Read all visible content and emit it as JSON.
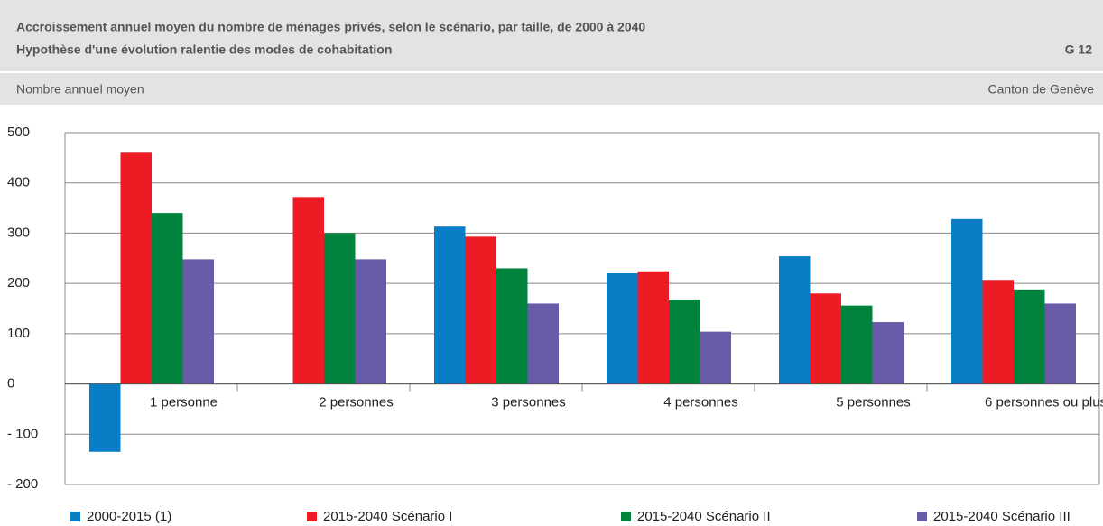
{
  "chart_data": {
    "type": "bar",
    "title": "Accroissement annuel moyen du nombre de ménages privés, selon le scénario, par taille, de 2000 à 2040",
    "subtitle": "Hypothèse d'une évolution ralentie des modes de cohabitation",
    "figure_id": "G 12",
    "y_label": "Nombre annuel moyen",
    "region": "Canton de Genève",
    "categories": [
      "1 personne",
      "2 personnes",
      "3 personnes",
      "4 personnes",
      "5 personnes",
      "6 personnes ou plus"
    ],
    "series": [
      {
        "name": "2000-2015 (1)",
        "color": "#0a7dc7",
        "values": [
          -135,
          null,
          313,
          220,
          254,
          328
        ]
      },
      {
        "name": "2015-2040 Scénario I",
        "color": "#ed1c24",
        "values": [
          460,
          372,
          293,
          224,
          180,
          207
        ]
      },
      {
        "name": "2015-2040 Scénario II",
        "color": "#00843d",
        "values": [
          340,
          300,
          230,
          168,
          156,
          188
        ]
      },
      {
        "name": "2015-2040 Scénario III",
        "color": "#6a5ba8",
        "values": [
          248,
          248,
          160,
          104,
          123,
          160
        ]
      }
    ],
    "ylim": [
      -200,
      500
    ],
    "yticks": [
      {
        "value": -200,
        "label": "- 200"
      },
      {
        "value": -100,
        "label": "- 100"
      },
      0,
      100,
      200,
      300,
      400,
      500
    ],
    "grid": true,
    "legend": "bottom"
  }
}
